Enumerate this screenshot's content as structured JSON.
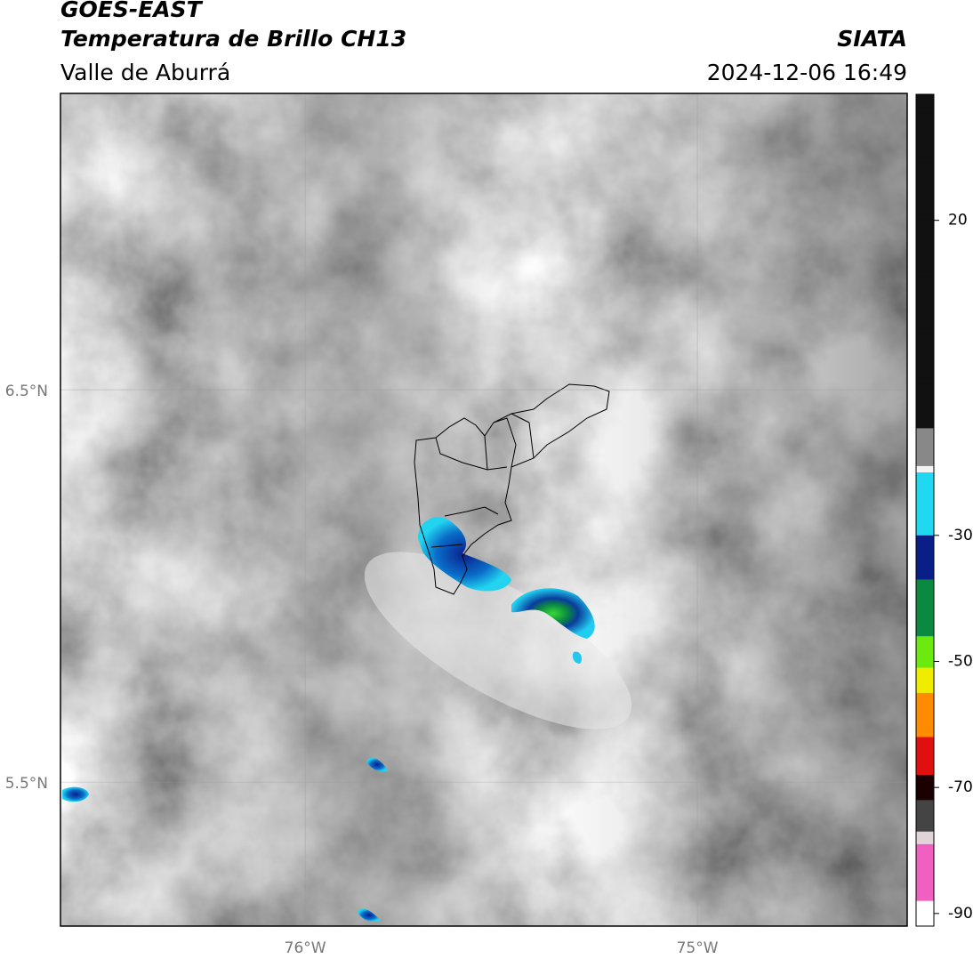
{
  "header": {
    "title": "GOES-EAST",
    "subtitle": "Temperatura de Brillo CH13",
    "region": "Valle de Aburrá",
    "source": "SIATA",
    "datetime": "2024-12-06 16:49"
  },
  "map": {
    "lonlim": [
      -76.624,
      -74.465
    ],
    "latlim": [
      5.133,
      7.255
    ],
    "xticks": [
      {
        "value": -76,
        "label": "76°W"
      },
      {
        "value": -75,
        "label": "75°W"
      }
    ],
    "yticks": [
      {
        "value": 6.5,
        "label": "6.5°N"
      },
      {
        "value": 5.5,
        "label": "5.5°N"
      }
    ]
  },
  "colorbar": {
    "lim": [
      -92,
      40
    ],
    "ticks": [
      20,
      -30,
      -50,
      -70,
      -90
    ]
  }
}
